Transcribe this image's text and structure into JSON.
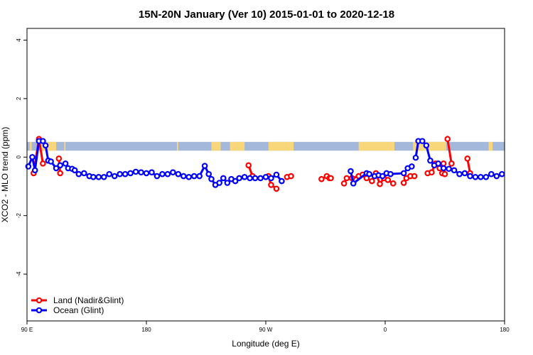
{
  "chart_data": {
    "type": "line",
    "title": "15N-20N January (Ver 10)   2015-01-01 to 2020-12-18",
    "xlabel": "Longitude (deg E)",
    "ylabel": "XCO2 - MLO trend (ppm)",
    "xlim": [
      90,
      450
    ],
    "ylim": [
      -5.6,
      4.4
    ],
    "x_ticks": [
      {
        "value": 90,
        "label": "90 E"
      },
      {
        "value": 180,
        "label": "180"
      },
      {
        "value": 270,
        "label": "90 W"
      },
      {
        "value": 360,
        "label": "0"
      },
      {
        "value": 450,
        "label": "180"
      }
    ],
    "y_ticks": [
      {
        "value": -4,
        "label": "-4"
      },
      {
        "value": -2,
        "label": "-2"
      },
      {
        "value": 0,
        "label": "0"
      },
      {
        "value": 2,
        "label": "2"
      },
      {
        "value": 4,
        "label": "4"
      }
    ],
    "legend_position": "bottom-left",
    "land_band": {
      "ymin": 0.22,
      "ymax": 0.52,
      "ocean_color": "#a3b8da",
      "land_color": "#f7d77a"
    },
    "series": [
      {
        "name": "Land (Nadir&Glint)",
        "color": "#ff0000",
        "segments": [
          [
            [
              95,
              -0.55
            ],
            [
              99,
              0.62
            ],
            [
              102,
              -0.22
            ]
          ],
          [
            [
              114,
              -0.05
            ],
            [
              115,
              -0.55
            ]
          ],
          [
            [
              257,
              -0.28
            ],
            [
              260,
              -0.65
            ]
          ],
          [
            [
              272,
              -0.65
            ],
            [
              274,
              -0.95
            ],
            [
              278,
              -1.08
            ]
          ],
          [
            [
              286,
              -0.68
            ],
            [
              289,
              -0.65
            ]
          ],
          [
            [
              312,
              -0.75
            ],
            [
              316,
              -0.65
            ],
            [
              318,
              -0.72
            ],
            [
              319,
              -0.72
            ]
          ],
          [
            [
              329,
              -0.9
            ],
            [
              331,
              -0.72
            ],
            [
              335,
              -0.72
            ],
            [
              340,
              -0.65
            ]
          ],
          [
            [
              343,
              -0.6
            ],
            [
              346,
              -0.72
            ],
            [
              350,
              -0.82
            ],
            [
              353,
              -0.55
            ],
            [
              356,
              -0.92
            ],
            [
              359,
              -0.72
            ],
            [
              362,
              -0.78
            ],
            [
              366,
              -0.9
            ]
          ],
          [
            [
              374,
              -0.88
            ],
            [
              376,
              -0.72
            ],
            [
              379,
              -0.65
            ],
            [
              382,
              -0.65
            ]
          ],
          [
            [
              392,
              -0.55
            ],
            [
              395,
              -0.52
            ],
            [
              398,
              -0.22
            ],
            [
              401,
              -0.38
            ],
            [
              403,
              -0.55
            ],
            [
              404,
              -0.22
            ],
            [
              405,
              -0.58
            ]
          ],
          [
            [
              407,
              0.62
            ],
            [
              410,
              -0.22
            ]
          ],
          [
            [
              422,
              -0.05
            ],
            [
              424,
              -0.55
            ]
          ]
        ]
      },
      {
        "name": "Ocean (Glint)",
        "color": "#0000ff",
        "segments": [
          [
            [
              91,
              -0.32
            ],
            [
              94,
              0.0
            ],
            [
              96,
              -0.45
            ],
            [
              99,
              0.55
            ],
            [
              102,
              0.55
            ],
            [
              104,
              0.4
            ],
            [
              106,
              -0.12
            ],
            [
              108,
              -0.15
            ],
            [
              112,
              -0.38
            ],
            [
              115,
              -0.28
            ],
            [
              119,
              -0.22
            ],
            [
              121,
              -0.38
            ],
            [
              124,
              -0.4
            ],
            [
              126,
              -0.45
            ],
            [
              129,
              -0.58
            ],
            [
              133,
              -0.55
            ],
            [
              137,
              -0.65
            ],
            [
              140,
              -0.68
            ],
            [
              144,
              -0.68
            ],
            [
              148,
              -0.68
            ],
            [
              152,
              -0.58
            ],
            [
              156,
              -0.65
            ],
            [
              160,
              -0.58
            ],
            [
              164,
              -0.58
            ],
            [
              168,
              -0.55
            ],
            [
              172,
              -0.5
            ],
            [
              176,
              -0.52
            ],
            [
              180,
              -0.55
            ],
            [
              184,
              -0.52
            ],
            [
              188,
              -0.65
            ],
            [
              192,
              -0.58
            ],
            [
              196,
              -0.58
            ],
            [
              200,
              -0.52
            ],
            [
              204,
              -0.58
            ],
            [
              208,
              -0.65
            ],
            [
              212,
              -0.68
            ],
            [
              216,
              -0.65
            ],
            [
              220,
              -0.65
            ],
            [
              224,
              -0.3
            ],
            [
              227,
              -0.58
            ],
            [
              229,
              -0.75
            ],
            [
              232,
              -0.95
            ],
            [
              235,
              -0.88
            ],
            [
              238,
              -0.72
            ],
            [
              241,
              -0.88
            ],
            [
              244,
              -0.75
            ],
            [
              247,
              -0.82
            ],
            [
              250,
              -0.72
            ],
            [
              254,
              -0.68
            ],
            [
              258,
              -0.72
            ],
            [
              262,
              -0.72
            ],
            [
              266,
              -0.72
            ],
            [
              270,
              -0.68
            ],
            [
              274,
              -0.72
            ],
            [
              278,
              -0.6
            ],
            [
              282,
              -0.82
            ]
          ]
        ]
      }
    ],
    "ocean_points": [
      [
        334,
        -0.48
      ],
      [
        336,
        -0.9
      ],
      [
        346,
        -0.55
      ],
      [
        348,
        -0.58
      ],
      [
        352,
        -0.65
      ],
      [
        355,
        -0.62
      ],
      [
        358,
        -0.65
      ],
      [
        361,
        -0.55
      ],
      [
        364,
        -0.58
      ],
      [
        374,
        -0.55
      ],
      [
        377,
        -0.38
      ],
      [
        380,
        -0.32
      ],
      [
        383,
        -0.02
      ],
      [
        388,
        0.55
      ],
      [
        391,
        0.4
      ],
      [
        394,
        -0.12
      ],
      [
        397,
        -0.28
      ],
      [
        399,
        -0.22
      ],
      [
        402,
        -0.38
      ],
      [
        406,
        -0.42
      ],
      [
        410,
        -0.45
      ],
      [
        414,
        -0.58
      ],
      [
        418,
        -0.55
      ],
      [
        422,
        -0.68
      ],
      [
        426,
        -0.65
      ],
      [
        430,
        -0.68
      ],
      [
        434,
        -0.65
      ],
      [
        438,
        -0.58
      ]
    ],
    "ocean_tail_points": [
      [
        383,
        -0.02
      ],
      [
        385,
        0.55
      ],
      [
        388,
        0.55
      ],
      [
        391,
        0.4
      ],
      [
        394,
        -0.12
      ],
      [
        397,
        -0.28
      ],
      [
        400,
        -0.22
      ],
      [
        404,
        -0.38
      ],
      [
        408,
        -0.4
      ],
      [
        412,
        -0.45
      ],
      [
        416,
        -0.58
      ],
      [
        420,
        -0.55
      ],
      [
        424,
        -0.65
      ],
      [
        428,
        -0.68
      ],
      [
        432,
        -0.68
      ],
      [
        436,
        -0.68
      ],
      [
        440,
        -0.58
      ],
      [
        444,
        -0.65
      ],
      [
        448,
        -0.58
      ]
    ]
  }
}
